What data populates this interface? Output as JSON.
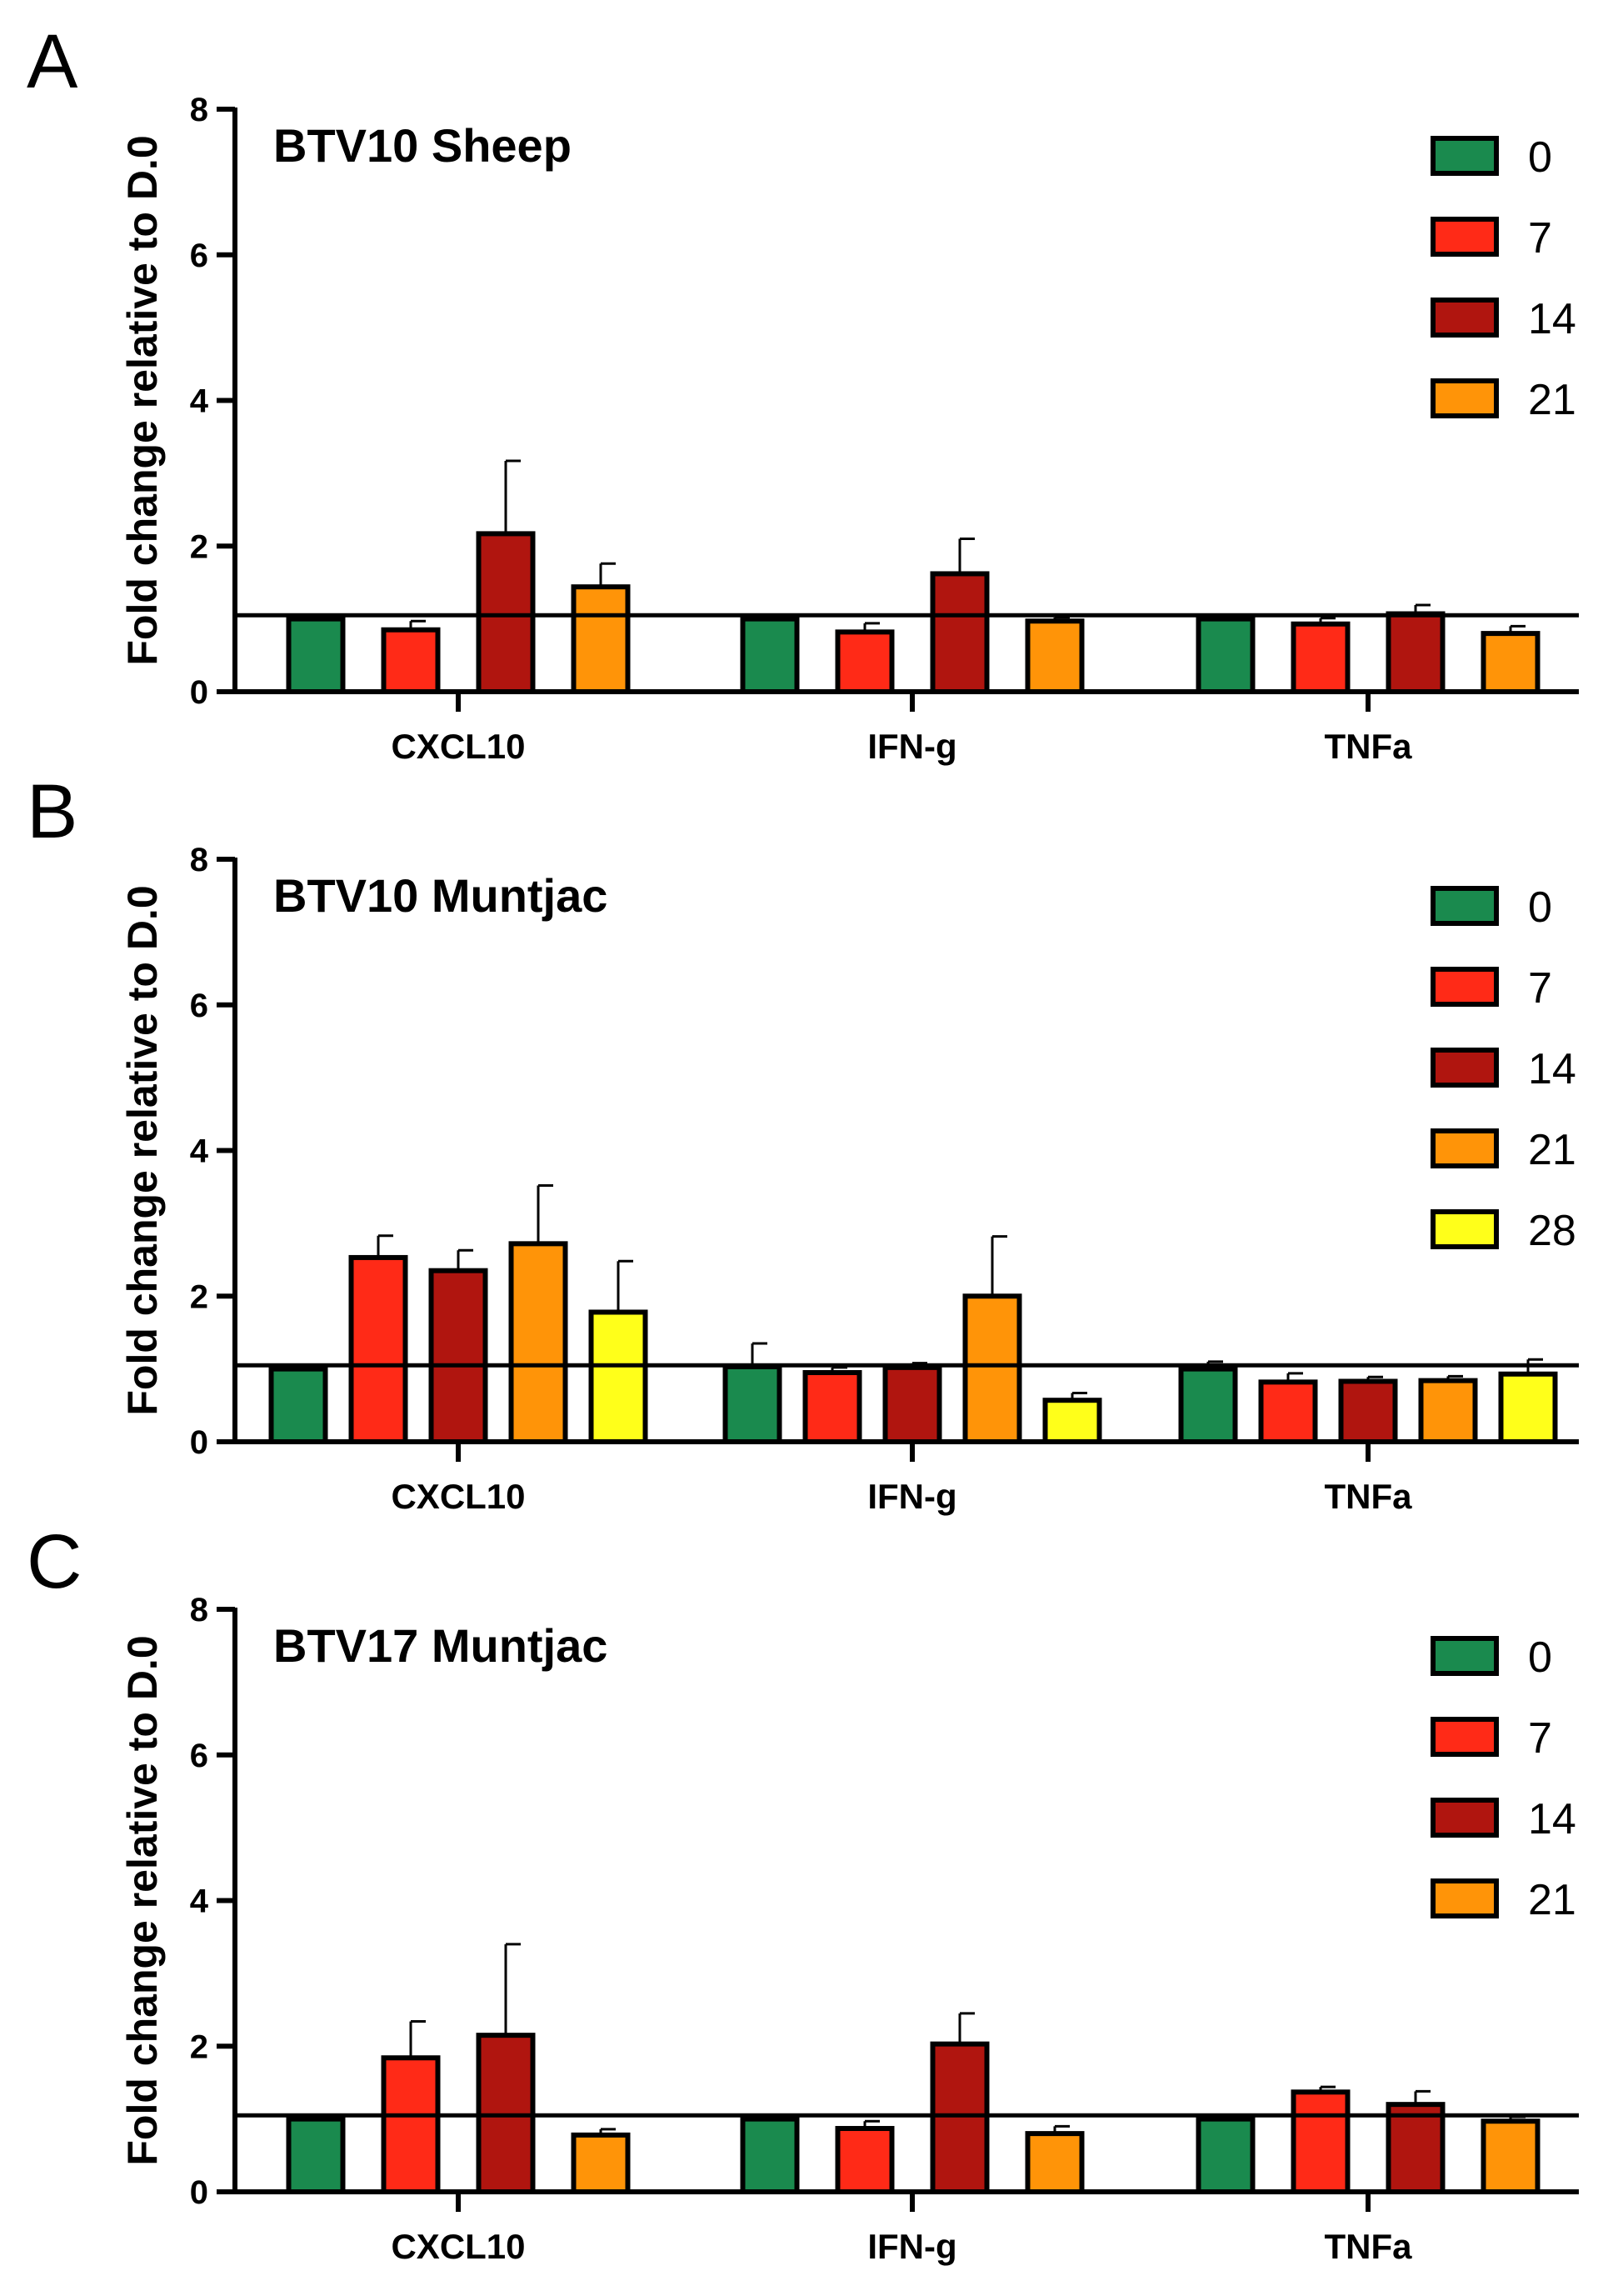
{
  "chart_data": [
    {
      "type": "bar",
      "panel": "A",
      "title": "BTV10 Sheep",
      "ylabel": "Fold change relative to D.0",
      "ylim": [
        0,
        8
      ],
      "yticks": [
        "0",
        "2",
        "4",
        "6",
        "8"
      ],
      "categories": [
        "CXCL10",
        "IFN-g",
        "TNFa"
      ],
      "reference_line": 1.05,
      "legend_position": "top-right",
      "series": [
        {
          "name": "0",
          "color": "#1a8a4e",
          "values": [
            1.0,
            1.0,
            1.0
          ],
          "errors": [
            0,
            0,
            0
          ]
        },
        {
          "name": "7",
          "color": "#ff2a17",
          "values": [
            0.85,
            0.82,
            0.93
          ],
          "errors": [
            0.12,
            0.12,
            0.08
          ]
        },
        {
          "name": "14",
          "color": "#b0150f",
          "values": [
            2.17,
            1.62,
            1.07
          ],
          "errors": [
            1.0,
            0.48,
            0.12
          ]
        },
        {
          "name": "21",
          "color": "#ff9408",
          "values": [
            1.44,
            0.97,
            0.8
          ],
          "errors": [
            0.32,
            0.05,
            0.1
          ]
        }
      ]
    },
    {
      "type": "bar",
      "panel": "B",
      "title": "BTV10 Muntjac",
      "ylabel": "Fold change relative to D.0",
      "ylim": [
        0,
        8
      ],
      "yticks": [
        "0",
        "2",
        "4",
        "6",
        "8"
      ],
      "categories": [
        "CXCL10",
        "IFN-g",
        "TNFa"
      ],
      "reference_line": 1.05,
      "legend_position": "top-right",
      "series": [
        {
          "name": "0",
          "color": "#1a8a4e",
          "values": [
            1.0,
            1.03,
            1.0
          ],
          "errors": [
            0,
            0.32,
            0.1
          ]
        },
        {
          "name": "7",
          "color": "#ff2a17",
          "values": [
            2.53,
            0.95,
            0.82
          ],
          "errors": [
            0.3,
            0.07,
            0.12
          ]
        },
        {
          "name": "14",
          "color": "#b0150f",
          "values": [
            2.35,
            1.02,
            0.83
          ],
          "errors": [
            0.28,
            0.06,
            0.06
          ]
        },
        {
          "name": "21",
          "color": "#ff9408",
          "values": [
            2.72,
            2.0,
            0.84
          ],
          "errors": [
            0.8,
            0.82,
            0.06
          ]
        },
        {
          "name": "28",
          "color": "#ffff1a",
          "values": [
            1.78,
            0.57,
            0.93
          ],
          "errors": [
            0.7,
            0.1,
            0.2
          ]
        }
      ]
    },
    {
      "type": "bar",
      "panel": "C",
      "title": "BTV17 Muntjac",
      "ylabel": "Fold change relative to D.0",
      "ylim": [
        0,
        8
      ],
      "yticks": [
        "0",
        "2",
        "4",
        "6",
        "8"
      ],
      "categories": [
        "CXCL10",
        "IFN-g",
        "TNFa"
      ],
      "reference_line": 1.05,
      "legend_position": "top-right",
      "series": [
        {
          "name": "0",
          "color": "#1a8a4e",
          "values": [
            1.0,
            1.0,
            1.0
          ],
          "errors": [
            0,
            0,
            0
          ]
        },
        {
          "name": "7",
          "color": "#ff2a17",
          "values": [
            1.84,
            0.87,
            1.37
          ],
          "errors": [
            0.5,
            0.1,
            0.07
          ]
        },
        {
          "name": "14",
          "color": "#b0150f",
          "values": [
            2.15,
            2.03,
            1.2
          ],
          "errors": [
            1.25,
            0.42,
            0.18
          ]
        },
        {
          "name": "21",
          "color": "#ff9408",
          "values": [
            0.78,
            0.8,
            0.97
          ],
          "errors": [
            0.08,
            0.1,
            0.06
          ]
        }
      ]
    }
  ]
}
